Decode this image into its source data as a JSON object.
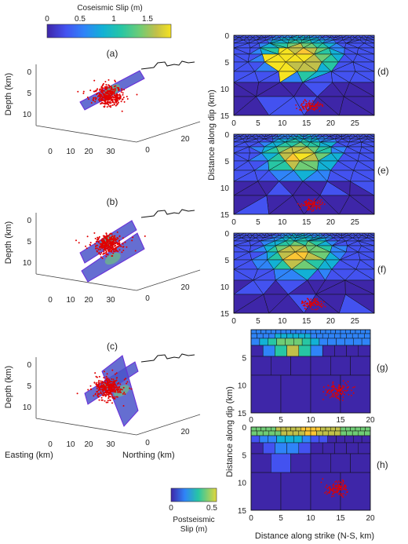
{
  "colorbars": {
    "coseismic": {
      "title": "Coseismic Slip (m)",
      "ticks": [
        "0",
        "0.5",
        "1",
        "1.5"
      ]
    },
    "postseismic": {
      "title_line1": "Postseismic",
      "title_line2": "Slip (m)",
      "ticks": [
        "0",
        "0.5"
      ]
    }
  },
  "colormap": [
    "#3e26a8",
    "#4352f0",
    "#2f84f8",
    "#12b1d5",
    "#27c6a4",
    "#6fcc75",
    "#c1c04a",
    "#fbc634",
    "#f6e321"
  ],
  "panels_3d": [
    {
      "label": "(a)",
      "z_label": "Depth (km)",
      "z_ticks": [
        "0",
        "5",
        "10"
      ],
      "easting_ticks": [
        "0",
        "10",
        "20",
        "30"
      ],
      "northing_ticks": [
        "0",
        "20"
      ]
    },
    {
      "label": "(b)",
      "z_label": "Depth (km)",
      "z_ticks": [
        "0",
        "5",
        "10"
      ],
      "easting_ticks": [
        "0",
        "10",
        "20",
        "30"
      ],
      "northing_ticks": [
        "0",
        "20"
      ]
    },
    {
      "label": "(c)",
      "z_label": "Depth (km)",
      "z_ticks": [
        "0",
        "5",
        "10"
      ],
      "easting_ticks": [
        "0",
        "10",
        "20",
        "30"
      ],
      "northing_ticks": [
        "0",
        "20"
      ],
      "x_label": "Easting (km)",
      "y_label": "Northing (km)"
    }
  ],
  "panels_right_top": {
    "y_label": "Distance along dip (km)",
    "x_ticks": [
      "0",
      "5",
      "10",
      "15",
      "20",
      "25"
    ],
    "y_ticks": [
      "0",
      "5",
      "10",
      "15"
    ],
    "labels": [
      "(d)",
      "(e)",
      "(f)"
    ]
  },
  "panels_right_bottom": {
    "y_label": "Distance along dip (km)",
    "x_label": "Distance along strike (N-S, km)",
    "x_ticks": [
      "0",
      "5",
      "10",
      "15",
      "20"
    ],
    "y_ticks": [
      "5",
      "10",
      "15"
    ],
    "h_y_ticks": [
      "0",
      "5",
      "10",
      "15"
    ],
    "labels": [
      "(g)",
      "(h)"
    ]
  }
}
